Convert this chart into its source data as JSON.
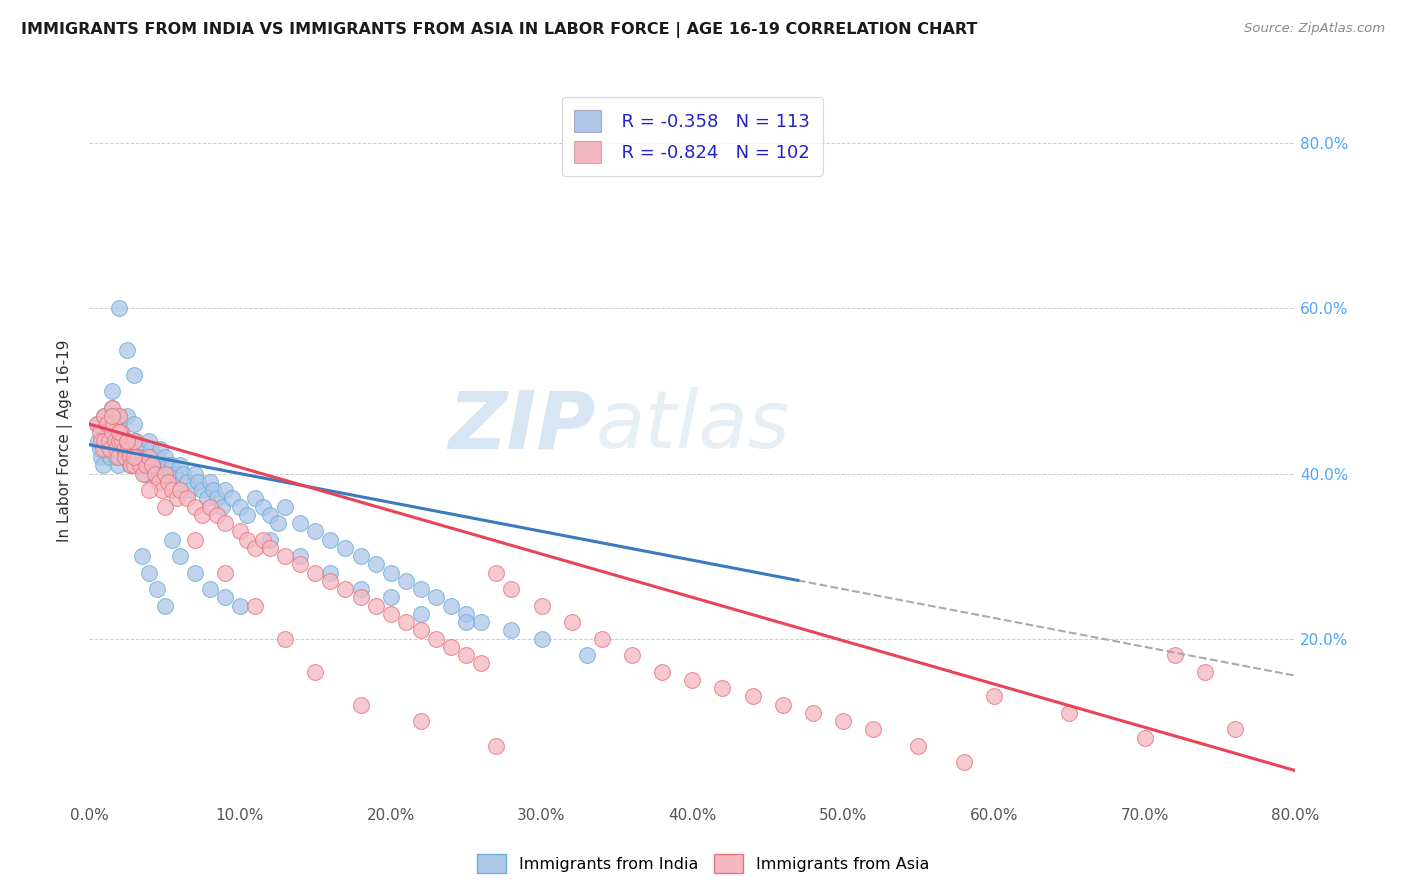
{
  "title": "IMMIGRANTS FROM INDIA VS IMMIGRANTS FROM ASIA IN LABOR FORCE | AGE 16-19 CORRELATION CHART",
  "source": "Source: ZipAtlas.com",
  "ylabel": "In Labor Force | Age 16-19",
  "xlim": [
    0.0,
    0.8
  ],
  "ylim": [
    0.0,
    0.88
  ],
  "x_ticks": [
    0.0,
    0.1,
    0.2,
    0.3,
    0.4,
    0.5,
    0.6,
    0.7,
    0.8
  ],
  "y_ticks_right": [
    0.2,
    0.4,
    0.6,
    0.8
  ],
  "india_color": "#aec6e8",
  "india_edge_color": "#6aaed6",
  "asia_color": "#f4b8c1",
  "asia_edge_color": "#e8737a",
  "india_line_color": "#3a7abf",
  "asia_line_color": "#e8435a",
  "dash_color": "#aaaaaa",
  "india_R": -0.358,
  "india_N": 113,
  "asia_R": -0.824,
  "asia_N": 102,
  "legend_label_india": "Immigrants from India",
  "legend_label_asia": "Immigrants from Asia",
  "watermark_zip": "ZIP",
  "watermark_atlas": "atlas",
  "india_line_x0": 0.0,
  "india_line_y0": 0.435,
  "india_line_x1": 0.8,
  "india_line_y1": 0.155,
  "asia_line_x0": 0.0,
  "asia_line_y0": 0.46,
  "asia_line_x1": 0.8,
  "asia_line_y1": 0.04,
  "india_scatter_x": [
    0.005,
    0.006,
    0.007,
    0.008,
    0.009,
    0.01,
    0.01,
    0.012,
    0.013,
    0.014,
    0.015,
    0.015,
    0.016,
    0.017,
    0.018,
    0.019,
    0.02,
    0.02,
    0.021,
    0.022,
    0.023,
    0.024,
    0.025,
    0.025,
    0.026,
    0.027,
    0.028,
    0.029,
    0.03,
    0.03,
    0.031,
    0.032,
    0.033,
    0.034,
    0.035,
    0.036,
    0.037,
    0.038,
    0.039,
    0.04,
    0.04,
    0.041,
    0.042,
    0.043,
    0.044,
    0.045,
    0.046,
    0.047,
    0.048,
    0.05,
    0.05,
    0.052,
    0.053,
    0.055,
    0.057,
    0.06,
    0.062,
    0.065,
    0.067,
    0.07,
    0.072,
    0.075,
    0.078,
    0.08,
    0.082,
    0.085,
    0.088,
    0.09,
    0.095,
    0.1,
    0.105,
    0.11,
    0.115,
    0.12,
    0.125,
    0.13,
    0.14,
    0.15,
    0.16,
    0.17,
    0.18,
    0.19,
    0.2,
    0.21,
    0.22,
    0.23,
    0.24,
    0.25,
    0.26,
    0.28,
    0.3,
    0.33,
    0.015,
    0.02,
    0.025,
    0.03,
    0.035,
    0.04,
    0.045,
    0.05,
    0.055,
    0.06,
    0.07,
    0.08,
    0.09,
    0.1,
    0.12,
    0.14,
    0.16,
    0.18,
    0.2,
    0.22,
    0.25
  ],
  "india_scatter_y": [
    0.46,
    0.44,
    0.43,
    0.42,
    0.41,
    0.47,
    0.43,
    0.45,
    0.44,
    0.42,
    0.48,
    0.43,
    0.46,
    0.44,
    0.42,
    0.41,
    0.47,
    0.43,
    0.45,
    0.44,
    0.42,
    0.43,
    0.47,
    0.44,
    0.42,
    0.41,
    0.43,
    0.42,
    0.46,
    0.42,
    0.44,
    0.42,
    0.41,
    0.43,
    0.42,
    0.41,
    0.4,
    0.42,
    0.41,
    0.44,
    0.41,
    0.43,
    0.42,
    0.41,
    0.4,
    0.42,
    0.41,
    0.43,
    0.4,
    0.42,
    0.4,
    0.41,
    0.4,
    0.41,
    0.4,
    0.41,
    0.4,
    0.39,
    0.38,
    0.4,
    0.39,
    0.38,
    0.37,
    0.39,
    0.38,
    0.37,
    0.36,
    0.38,
    0.37,
    0.36,
    0.35,
    0.37,
    0.36,
    0.35,
    0.34,
    0.36,
    0.34,
    0.33,
    0.32,
    0.31,
    0.3,
    0.29,
    0.28,
    0.27,
    0.26,
    0.25,
    0.24,
    0.23,
    0.22,
    0.21,
    0.2,
    0.18,
    0.5,
    0.6,
    0.55,
    0.52,
    0.3,
    0.28,
    0.26,
    0.24,
    0.32,
    0.3,
    0.28,
    0.26,
    0.25,
    0.24,
    0.32,
    0.3,
    0.28,
    0.26,
    0.25,
    0.23,
    0.22
  ],
  "asia_scatter_x": [
    0.005,
    0.007,
    0.008,
    0.009,
    0.01,
    0.01,
    0.012,
    0.013,
    0.014,
    0.015,
    0.015,
    0.016,
    0.017,
    0.018,
    0.019,
    0.02,
    0.02,
    0.021,
    0.022,
    0.023,
    0.024,
    0.025,
    0.026,
    0.027,
    0.028,
    0.03,
    0.03,
    0.032,
    0.034,
    0.036,
    0.038,
    0.04,
    0.042,
    0.044,
    0.046,
    0.048,
    0.05,
    0.052,
    0.055,
    0.058,
    0.06,
    0.065,
    0.07,
    0.075,
    0.08,
    0.085,
    0.09,
    0.1,
    0.105,
    0.11,
    0.115,
    0.12,
    0.13,
    0.14,
    0.15,
    0.16,
    0.17,
    0.18,
    0.19,
    0.2,
    0.21,
    0.22,
    0.23,
    0.24,
    0.25,
    0.26,
    0.27,
    0.28,
    0.3,
    0.32,
    0.34,
    0.36,
    0.38,
    0.4,
    0.42,
    0.44,
    0.46,
    0.48,
    0.5,
    0.52,
    0.55,
    0.58,
    0.6,
    0.65,
    0.7,
    0.72,
    0.74,
    0.76,
    0.015,
    0.02,
    0.025,
    0.03,
    0.04,
    0.05,
    0.07,
    0.09,
    0.11,
    0.13,
    0.15,
    0.18,
    0.22,
    0.27
  ],
  "asia_scatter_y": [
    0.46,
    0.45,
    0.44,
    0.43,
    0.47,
    0.44,
    0.46,
    0.44,
    0.43,
    0.48,
    0.45,
    0.46,
    0.44,
    0.43,
    0.42,
    0.47,
    0.44,
    0.45,
    0.44,
    0.43,
    0.42,
    0.44,
    0.43,
    0.42,
    0.41,
    0.44,
    0.41,
    0.42,
    0.41,
    0.4,
    0.41,
    0.42,
    0.41,
    0.4,
    0.39,
    0.38,
    0.4,
    0.39,
    0.38,
    0.37,
    0.38,
    0.37,
    0.36,
    0.35,
    0.36,
    0.35,
    0.34,
    0.33,
    0.32,
    0.31,
    0.32,
    0.31,
    0.3,
    0.29,
    0.28,
    0.27,
    0.26,
    0.25,
    0.24,
    0.23,
    0.22,
    0.21,
    0.2,
    0.19,
    0.18,
    0.17,
    0.28,
    0.26,
    0.24,
    0.22,
    0.2,
    0.18,
    0.16,
    0.15,
    0.14,
    0.13,
    0.12,
    0.11,
    0.1,
    0.09,
    0.07,
    0.05,
    0.13,
    0.11,
    0.08,
    0.18,
    0.16,
    0.09,
    0.47,
    0.45,
    0.44,
    0.42,
    0.38,
    0.36,
    0.32,
    0.28,
    0.24,
    0.2,
    0.16,
    0.12,
    0.1,
    0.07
  ]
}
